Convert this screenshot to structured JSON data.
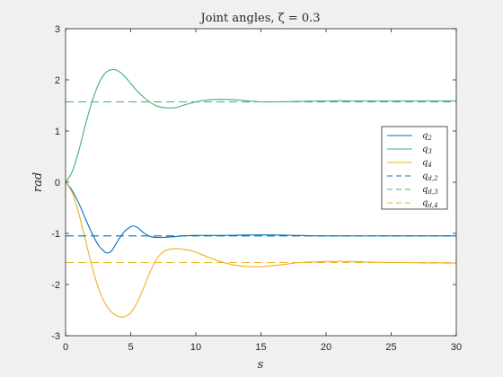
{
  "chart_data": {
    "type": "line",
    "title": "Joint angles, ζ = 0.3",
    "xlabel": "s",
    "ylabel": "rad",
    "xlim": [
      0,
      30
    ],
    "ylim": [
      -3,
      3
    ],
    "xticks": [
      0,
      5,
      10,
      15,
      20,
      25,
      30
    ],
    "yticks": [
      -3,
      -2,
      -1,
      0,
      1,
      2,
      3
    ],
    "grid": false,
    "legend_position": "right",
    "series": [
      {
        "name": "q2",
        "legend_main": "q",
        "legend_sub": "2",
        "color": "#0072BD",
        "style": "solid",
        "x": [
          0,
          0.5,
          1,
          1.5,
          2,
          2.5,
          3,
          3.3,
          3.6,
          4,
          4.5,
          5,
          5.3,
          5.6,
          6,
          6.5,
          7,
          8,
          9,
          10,
          12,
          15,
          18,
          20,
          25,
          30
        ],
        "y": [
          0,
          -0.16,
          -0.4,
          -0.7,
          -0.98,
          -1.22,
          -1.36,
          -1.38,
          -1.32,
          -1.15,
          -0.97,
          -0.87,
          -0.86,
          -0.9,
          -0.99,
          -1.06,
          -1.08,
          -1.07,
          -1.05,
          -1.04,
          -1.04,
          -1.03,
          -1.04,
          -1.05,
          -1.05,
          -1.05
        ]
      },
      {
        "name": "q3",
        "legend_main": "q",
        "legend_sub": "3",
        "color": "#3CB371",
        "style": "solid",
        "x": [
          0,
          0.5,
          1,
          1.5,
          2,
          2.5,
          3,
          3.5,
          4,
          4.5,
          5,
          5.5,
          6,
          6.5,
          7,
          7.5,
          8,
          8.5,
          9,
          10,
          11,
          12,
          13,
          14,
          15,
          16,
          18,
          20,
          22,
          25,
          30
        ],
        "y": [
          0,
          0.2,
          0.6,
          1.1,
          1.55,
          1.9,
          2.12,
          2.2,
          2.18,
          2.08,
          1.93,
          1.78,
          1.66,
          1.56,
          1.49,
          1.46,
          1.45,
          1.46,
          1.5,
          1.57,
          1.61,
          1.62,
          1.61,
          1.59,
          1.57,
          1.57,
          1.58,
          1.59,
          1.59,
          1.59,
          1.59
        ]
      },
      {
        "name": "q4",
        "legend_main": "q",
        "legend_sub": "4",
        "color": "#EDB120",
        "style": "solid",
        "x": [
          0,
          0.5,
          1,
          1.5,
          2,
          2.5,
          3,
          3.5,
          4,
          4.5,
          5,
          5.5,
          6,
          6.5,
          7,
          7.5,
          8,
          8.5,
          9,
          9.5,
          10,
          11,
          12,
          13,
          14,
          15,
          16,
          17,
          18,
          20,
          22,
          25,
          30
        ],
        "y": [
          0,
          -0.2,
          -0.6,
          -1.1,
          -1.62,
          -2.05,
          -2.35,
          -2.53,
          -2.62,
          -2.63,
          -2.55,
          -2.35,
          -2.06,
          -1.75,
          -1.5,
          -1.36,
          -1.31,
          -1.3,
          -1.31,
          -1.33,
          -1.37,
          -1.47,
          -1.56,
          -1.62,
          -1.65,
          -1.65,
          -1.63,
          -1.6,
          -1.57,
          -1.55,
          -1.55,
          -1.57,
          -1.58
        ]
      },
      {
        "name": "qd2",
        "legend_main": "q",
        "legend_sub": "d,2",
        "color": "#0072BD",
        "style": "dashed",
        "x": [
          0,
          30
        ],
        "y": [
          -1.05,
          -1.05
        ]
      },
      {
        "name": "qd3",
        "legend_main": "q",
        "legend_sub": "d,3",
        "color": "#3CB371",
        "style": "dashed",
        "x": [
          0,
          30
        ],
        "y": [
          1.57,
          1.57
        ]
      },
      {
        "name": "qd4",
        "legend_main": "q",
        "legend_sub": "d,4",
        "color": "#EDB120",
        "style": "dashed",
        "x": [
          0,
          30
        ],
        "y": [
          -1.57,
          -1.57
        ]
      }
    ]
  }
}
